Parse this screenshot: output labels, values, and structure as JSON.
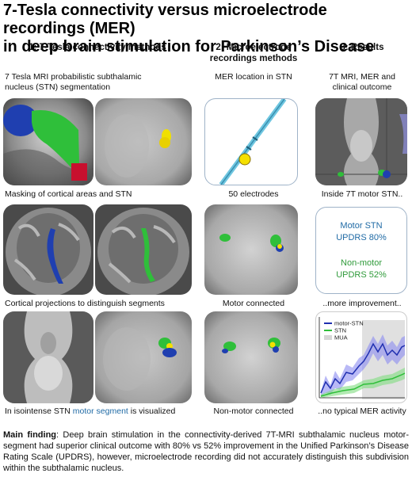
{
  "title": {
    "line1": "7-Tesla connectivity versus microelectrode recordings (MER)",
    "line2": "in deep brain stimulation for Parkinson’s Disease"
  },
  "columns": {
    "col1": {
      "heading": "1: 7-Tesla connectivity methods"
    },
    "col2": {
      "heading_line1": "2: Microelectrode",
      "heading_line2": "recordings methods"
    },
    "col3": {
      "heading": "3: Results"
    }
  },
  "col1": {
    "intro_line1": "7 Tesla MRI probabilistic subthalamic",
    "intro_line2": "nucleus (STN) segmentation",
    "caption1": "Masking of cortical areas and STN",
    "caption2": "Cortical projections to distinguish segments",
    "caption3_prefix": "In isointense STN ",
    "caption3_highlight": "motor segment",
    "caption3_suffix": " is visualized"
  },
  "col2": {
    "intro": "MER location in STN",
    "caption1": "50 electrodes",
    "caption2": "Motor connected",
    "caption3": "Non-motor connected"
  },
  "col3": {
    "intro_line1": "7T MRI, MER and",
    "intro_line2": "clinical outcome",
    "caption1": "Inside 7T motor STN..",
    "result_box": {
      "motor_line1": "Motor STN",
      "motor_line2": "UPDRS 80%",
      "nonmotor_line1": "Non-motor",
      "nonmotor_line2": "UPDRS 52%"
    },
    "caption2": "..more improvement..",
    "legend": {
      "motor": "motor-STN",
      "stn": "STN",
      "mua": "MUA"
    },
    "caption3": "..no typical MER activity"
  },
  "finding": {
    "label": "Main finding",
    "text": ": Deep brain stimulation in the connectivity-derived 7T-MRI subthalamic nucleus motor-segment had superior clinical outcome with 80% vs 52% improvement in the Unified Parkinson’s Disease Rating Scale (UPDRS), however, microelectrode recording did not accurately distinguish this subdivision within the subthalamic nucleus."
  },
  "colors": {
    "motor": "#1f3fb0",
    "stn": "#2fbf3a",
    "result_blue": "#1f6aa5",
    "result_green": "#2f9a3a",
    "electrode_dot": "#f5e000",
    "box_border": "#9fb3c8"
  }
}
